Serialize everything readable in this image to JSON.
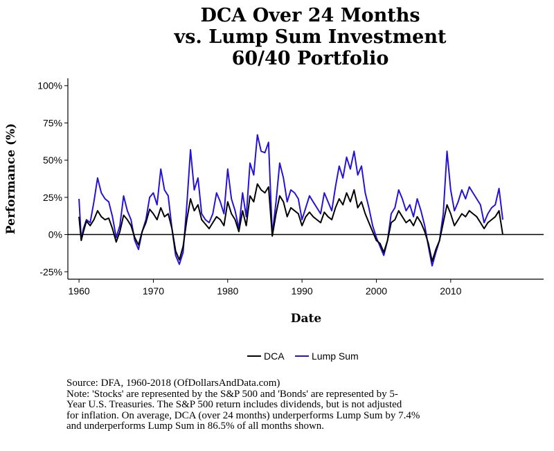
{
  "chart_data": {
    "type": "line",
    "title": [
      "DCA Over 24 Months",
      "vs. Lump Sum Investment",
      "60/40 Portfolio"
    ],
    "xlabel": "Date",
    "ylabel": "Performance (%)",
    "xlim": [
      1958.5,
      2022.5
    ],
    "ylim": [
      -30,
      105
    ],
    "x_ticks": [
      1960,
      1970,
      1980,
      1990,
      2000,
      2010
    ],
    "x_tick_labels": [
      "1960",
      "1970",
      "1980",
      "1990",
      "2000",
      "2010"
    ],
    "y_ticks": [
      -25,
      0,
      25,
      50,
      75,
      100
    ],
    "y_tick_labels": [
      "-25%",
      "0%",
      "25%",
      "50%",
      "75%",
      "100%"
    ],
    "reference_line_y": 0,
    "legend_position": "bottom",
    "series": [
      {
        "name": "DCA",
        "color": "#000000",
        "points": [
          [
            1960.0,
            12
          ],
          [
            1960.3,
            -4
          ],
          [
            1960.6,
            2
          ],
          [
            1961.0,
            9
          ],
          [
            1961.5,
            6
          ],
          [
            1962.0,
            10
          ],
          [
            1962.5,
            16
          ],
          [
            1963.0,
            12
          ],
          [
            1963.5,
            10
          ],
          [
            1964.0,
            11
          ],
          [
            1964.5,
            4
          ],
          [
            1965.0,
            -5
          ],
          [
            1965.5,
            2
          ],
          [
            1966.0,
            13
          ],
          [
            1966.5,
            10
          ],
          [
            1967.0,
            6
          ],
          [
            1967.5,
            -2
          ],
          [
            1968.0,
            -7
          ],
          [
            1968.5,
            2
          ],
          [
            1969.0,
            8
          ],
          [
            1969.5,
            17
          ],
          [
            1970.0,
            14
          ],
          [
            1970.5,
            10
          ],
          [
            1971.0,
            18
          ],
          [
            1971.5,
            12
          ],
          [
            1972.0,
            14
          ],
          [
            1972.5,
            4
          ],
          [
            1973.0,
            -11
          ],
          [
            1973.5,
            -17
          ],
          [
            1974.0,
            -8
          ],
          [
            1974.5,
            10
          ],
          [
            1975.0,
            24
          ],
          [
            1975.5,
            16
          ],
          [
            1976.0,
            20
          ],
          [
            1976.5,
            10
          ],
          [
            1977.0,
            7
          ],
          [
            1977.5,
            4
          ],
          [
            1978.0,
            8
          ],
          [
            1978.5,
            12
          ],
          [
            1979.0,
            10
          ],
          [
            1979.5,
            6
          ],
          [
            1980.0,
            22
          ],
          [
            1980.5,
            14
          ],
          [
            1981.0,
            10
          ],
          [
            1981.5,
            2
          ],
          [
            1982.0,
            16
          ],
          [
            1982.5,
            6
          ],
          [
            1983.0,
            26
          ],
          [
            1983.5,
            22
          ],
          [
            1984.0,
            34
          ],
          [
            1984.5,
            30
          ],
          [
            1985.0,
            28
          ],
          [
            1985.5,
            32
          ],
          [
            1986.0,
            -1
          ],
          [
            1986.5,
            14
          ],
          [
            1987.0,
            26
          ],
          [
            1987.5,
            22
          ],
          [
            1988.0,
            12
          ],
          [
            1988.5,
            18
          ],
          [
            1989.0,
            16
          ],
          [
            1989.5,
            14
          ],
          [
            1990.0,
            6
          ],
          [
            1990.5,
            12
          ],
          [
            1991.0,
            15
          ],
          [
            1991.5,
            12
          ],
          [
            1992.0,
            10
          ],
          [
            1992.5,
            8
          ],
          [
            1993.0,
            15
          ],
          [
            1993.5,
            12
          ],
          [
            1994.0,
            10
          ],
          [
            1994.5,
            18
          ],
          [
            1995.0,
            24
          ],
          [
            1995.5,
            20
          ],
          [
            1996.0,
            28
          ],
          [
            1996.5,
            22
          ],
          [
            1997.0,
            30
          ],
          [
            1997.5,
            18
          ],
          [
            1998.0,
            22
          ],
          [
            1998.5,
            14
          ],
          [
            1999.0,
            8
          ],
          [
            1999.5,
            2
          ],
          [
            2000.0,
            -4
          ],
          [
            2000.5,
            -6
          ],
          [
            2001.0,
            -12
          ],
          [
            2001.5,
            -4
          ],
          [
            2002.0,
            8
          ],
          [
            2002.5,
            10
          ],
          [
            2003.0,
            16
          ],
          [
            2003.5,
            12
          ],
          [
            2004.0,
            8
          ],
          [
            2004.5,
            10
          ],
          [
            2005.0,
            6
          ],
          [
            2005.5,
            12
          ],
          [
            2006.0,
            8
          ],
          [
            2006.5,
            2
          ],
          [
            2007.0,
            -6
          ],
          [
            2007.5,
            -18
          ],
          [
            2008.0,
            -10
          ],
          [
            2008.5,
            -4
          ],
          [
            2009.0,
            8
          ],
          [
            2009.5,
            20
          ],
          [
            2010.0,
            14
          ],
          [
            2010.5,
            6
          ],
          [
            2011.0,
            10
          ],
          [
            2011.5,
            14
          ],
          [
            2012.0,
            12
          ],
          [
            2012.5,
            16
          ],
          [
            2013.0,
            14
          ],
          [
            2013.5,
            12
          ],
          [
            2014.0,
            8
          ],
          [
            2014.5,
            4
          ],
          [
            2015.0,
            8
          ],
          [
            2015.5,
            10
          ],
          [
            2016.0,
            12
          ],
          [
            2016.5,
            16
          ],
          [
            2017.0,
            0
          ]
        ]
      },
      {
        "name": "Lump Sum",
        "color": "#2412d6",
        "points": [
          [
            1960.0,
            24
          ],
          [
            1960.3,
            -3
          ],
          [
            1960.6,
            4
          ],
          [
            1961.0,
            10
          ],
          [
            1961.5,
            8
          ],
          [
            1962.0,
            22
          ],
          [
            1962.5,
            38
          ],
          [
            1963.0,
            28
          ],
          [
            1963.5,
            24
          ],
          [
            1964.0,
            22
          ],
          [
            1964.5,
            12
          ],
          [
            1965.0,
            -2
          ],
          [
            1965.5,
            6
          ],
          [
            1966.0,
            26
          ],
          [
            1966.5,
            16
          ],
          [
            1967.0,
            10
          ],
          [
            1967.5,
            -4
          ],
          [
            1968.0,
            -10
          ],
          [
            1968.5,
            2
          ],
          [
            1969.0,
            10
          ],
          [
            1969.5,
            25
          ],
          [
            1970.0,
            28
          ],
          [
            1970.5,
            20
          ],
          [
            1971.0,
            44
          ],
          [
            1971.5,
            30
          ],
          [
            1972.0,
            26
          ],
          [
            1972.5,
            4
          ],
          [
            1973.0,
            -14
          ],
          [
            1973.5,
            -20
          ],
          [
            1974.0,
            -12
          ],
          [
            1974.5,
            20
          ],
          [
            1975.0,
            57
          ],
          [
            1975.5,
            30
          ],
          [
            1976.0,
            38
          ],
          [
            1976.5,
            14
          ],
          [
            1977.0,
            10
          ],
          [
            1977.5,
            8
          ],
          [
            1978.0,
            14
          ],
          [
            1978.5,
            28
          ],
          [
            1979.0,
            22
          ],
          [
            1979.5,
            14
          ],
          [
            1980.0,
            44
          ],
          [
            1980.5,
            24
          ],
          [
            1981.0,
            16
          ],
          [
            1981.5,
            4
          ],
          [
            1982.0,
            28
          ],
          [
            1982.5,
            12
          ],
          [
            1983.0,
            48
          ],
          [
            1983.5,
            40
          ],
          [
            1984.0,
            67
          ],
          [
            1984.5,
            56
          ],
          [
            1985.0,
            55
          ],
          [
            1985.5,
            62
          ],
          [
            1986.0,
            0
          ],
          [
            1986.5,
            22
          ],
          [
            1987.0,
            48
          ],
          [
            1987.5,
            38
          ],
          [
            1988.0,
            22
          ],
          [
            1988.5,
            30
          ],
          [
            1989.0,
            28
          ],
          [
            1989.5,
            24
          ],
          [
            1990.0,
            10
          ],
          [
            1990.5,
            18
          ],
          [
            1991.0,
            26
          ],
          [
            1991.5,
            22
          ],
          [
            1992.0,
            18
          ],
          [
            1992.5,
            14
          ],
          [
            1993.0,
            28
          ],
          [
            1993.5,
            22
          ],
          [
            1994.0,
            16
          ],
          [
            1994.5,
            32
          ],
          [
            1995.0,
            46
          ],
          [
            1995.5,
            38
          ],
          [
            1996.0,
            52
          ],
          [
            1996.5,
            44
          ],
          [
            1997.0,
            56
          ],
          [
            1997.5,
            40
          ],
          [
            1998.0,
            46
          ],
          [
            1998.5,
            28
          ],
          [
            1999.0,
            18
          ],
          [
            1999.5,
            6
          ],
          [
            2000.0,
            -2
          ],
          [
            2000.5,
            -8
          ],
          [
            2001.0,
            -14
          ],
          [
            2001.5,
            -4
          ],
          [
            2002.0,
            14
          ],
          [
            2002.5,
            18
          ],
          [
            2003.0,
            30
          ],
          [
            2003.5,
            24
          ],
          [
            2004.0,
            16
          ],
          [
            2004.5,
            20
          ],
          [
            2005.0,
            12
          ],
          [
            2005.5,
            24
          ],
          [
            2006.0,
            16
          ],
          [
            2006.5,
            6
          ],
          [
            2007.0,
            -8
          ],
          [
            2007.5,
            -21
          ],
          [
            2008.0,
            -12
          ],
          [
            2008.5,
            -4
          ],
          [
            2009.0,
            14
          ],
          [
            2009.5,
            56
          ],
          [
            2010.0,
            30
          ],
          [
            2010.5,
            16
          ],
          [
            2011.0,
            22
          ],
          [
            2011.5,
            30
          ],
          [
            2012.0,
            24
          ],
          [
            2012.5,
            32
          ],
          [
            2013.0,
            28
          ],
          [
            2013.5,
            24
          ],
          [
            2014.0,
            20
          ],
          [
            2014.5,
            8
          ],
          [
            2015.0,
            14
          ],
          [
            2015.5,
            18
          ],
          [
            2016.0,
            20
          ],
          [
            2016.5,
            31
          ],
          [
            2017.0,
            10
          ]
        ]
      }
    ]
  },
  "note": {
    "source": "Source:  DFA, 1960-2018 (OfDollarsAndData.com)",
    "lines": [
      "Note: 'Stocks' are represented by the S&P 500 and 'Bonds' are represented by 5-",
      "Year U.S. Treasuries. The S&P 500 return includes dividends, but is not adjusted",
      "for inflation. On average, DCA (over 24 months) underperforms Lump Sum by 7.4%",
      "and underperforms Lump Sum in 86.5% of all months shown."
    ]
  }
}
